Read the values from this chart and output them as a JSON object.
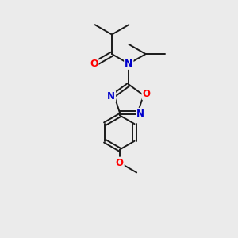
{
  "background_color": "#ebebeb",
  "bond_color": "#1a1a1a",
  "bond_width": 1.4,
  "atom_colors": {
    "O": "#ff0000",
    "N": "#0000cc",
    "C": "#1a1a1a"
  },
  "font_size_atom": 8.5,
  "figsize": [
    3.0,
    3.0
  ],
  "dpi": 100
}
